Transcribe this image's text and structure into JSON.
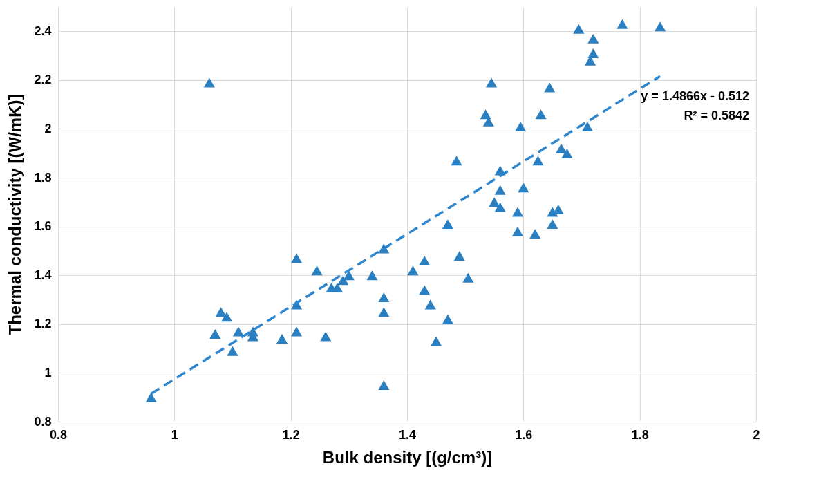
{
  "chart_data": {
    "type": "scatter",
    "xlabel": "Bulk density [(g/cm³)]",
    "ylabel": "Thermal conductivity [(W/mK)]",
    "xlim": [
      0.8,
      2
    ],
    "xticks": [
      0.8,
      1,
      1.2,
      1.4,
      1.6,
      1.8,
      2
    ],
    "ylim": [
      0.8,
      2.5
    ],
    "yticks": [
      0.8,
      1,
      1.2,
      1.4,
      1.6,
      1.8,
      2,
      2.2,
      2.4
    ],
    "grid": true,
    "marker": "triangle",
    "annotations": [
      "y = 1.4866x - 0.512",
      "R² = 0.5842"
    ],
    "series": [
      {
        "color": "#2a7fc1",
        "x": [
          0.96,
          1.06,
          1.07,
          1.08,
          1.09,
          1.1,
          1.11,
          1.135,
          1.135,
          1.185,
          1.21,
          1.21,
          1.21,
          1.245,
          1.26,
          1.27,
          1.28,
          1.29,
          1.3,
          1.34,
          1.36,
          1.36,
          1.36,
          1.36,
          1.41,
          1.43,
          1.43,
          1.44,
          1.45,
          1.47,
          1.47,
          1.485,
          1.49,
          1.505,
          1.535,
          1.54,
          1.545,
          1.55,
          1.56,
          1.56,
          1.56,
          1.59,
          1.59,
          1.595,
          1.6,
          1.62,
          1.625,
          1.63,
          1.645,
          1.65,
          1.65,
          1.66,
          1.665,
          1.675,
          1.695,
          1.71,
          1.715,
          1.72,
          1.72,
          1.77,
          1.835
        ],
        "values": [
          0.9,
          2.19,
          1.16,
          1.25,
          1.23,
          1.09,
          1.17,
          1.17,
          1.15,
          1.14,
          1.47,
          1.28,
          1.17,
          1.42,
          1.15,
          1.35,
          1.35,
          1.38,
          1.4,
          1.4,
          1.51,
          1.31,
          1.25,
          0.95,
          1.42,
          1.46,
          1.34,
          1.28,
          1.13,
          1.61,
          1.22,
          1.87,
          1.48,
          1.39,
          2.06,
          2.03,
          2.19,
          1.7,
          1.83,
          1.75,
          1.68,
          1.66,
          1.58,
          2.01,
          1.76,
          1.57,
          1.87,
          2.06,
          2.17,
          1.66,
          1.61,
          1.67,
          1.92,
          1.9,
          2.41,
          2.01,
          2.28,
          2.31,
          2.37,
          2.43,
          2.42
        ]
      },
      {
        "type": "line",
        "marker": "none",
        "color": "#2e86cf",
        "line_style": "dashed",
        "x": [
          0.96,
          1.835
        ],
        "values": [
          0.915,
          2.216
        ]
      }
    ]
  }
}
